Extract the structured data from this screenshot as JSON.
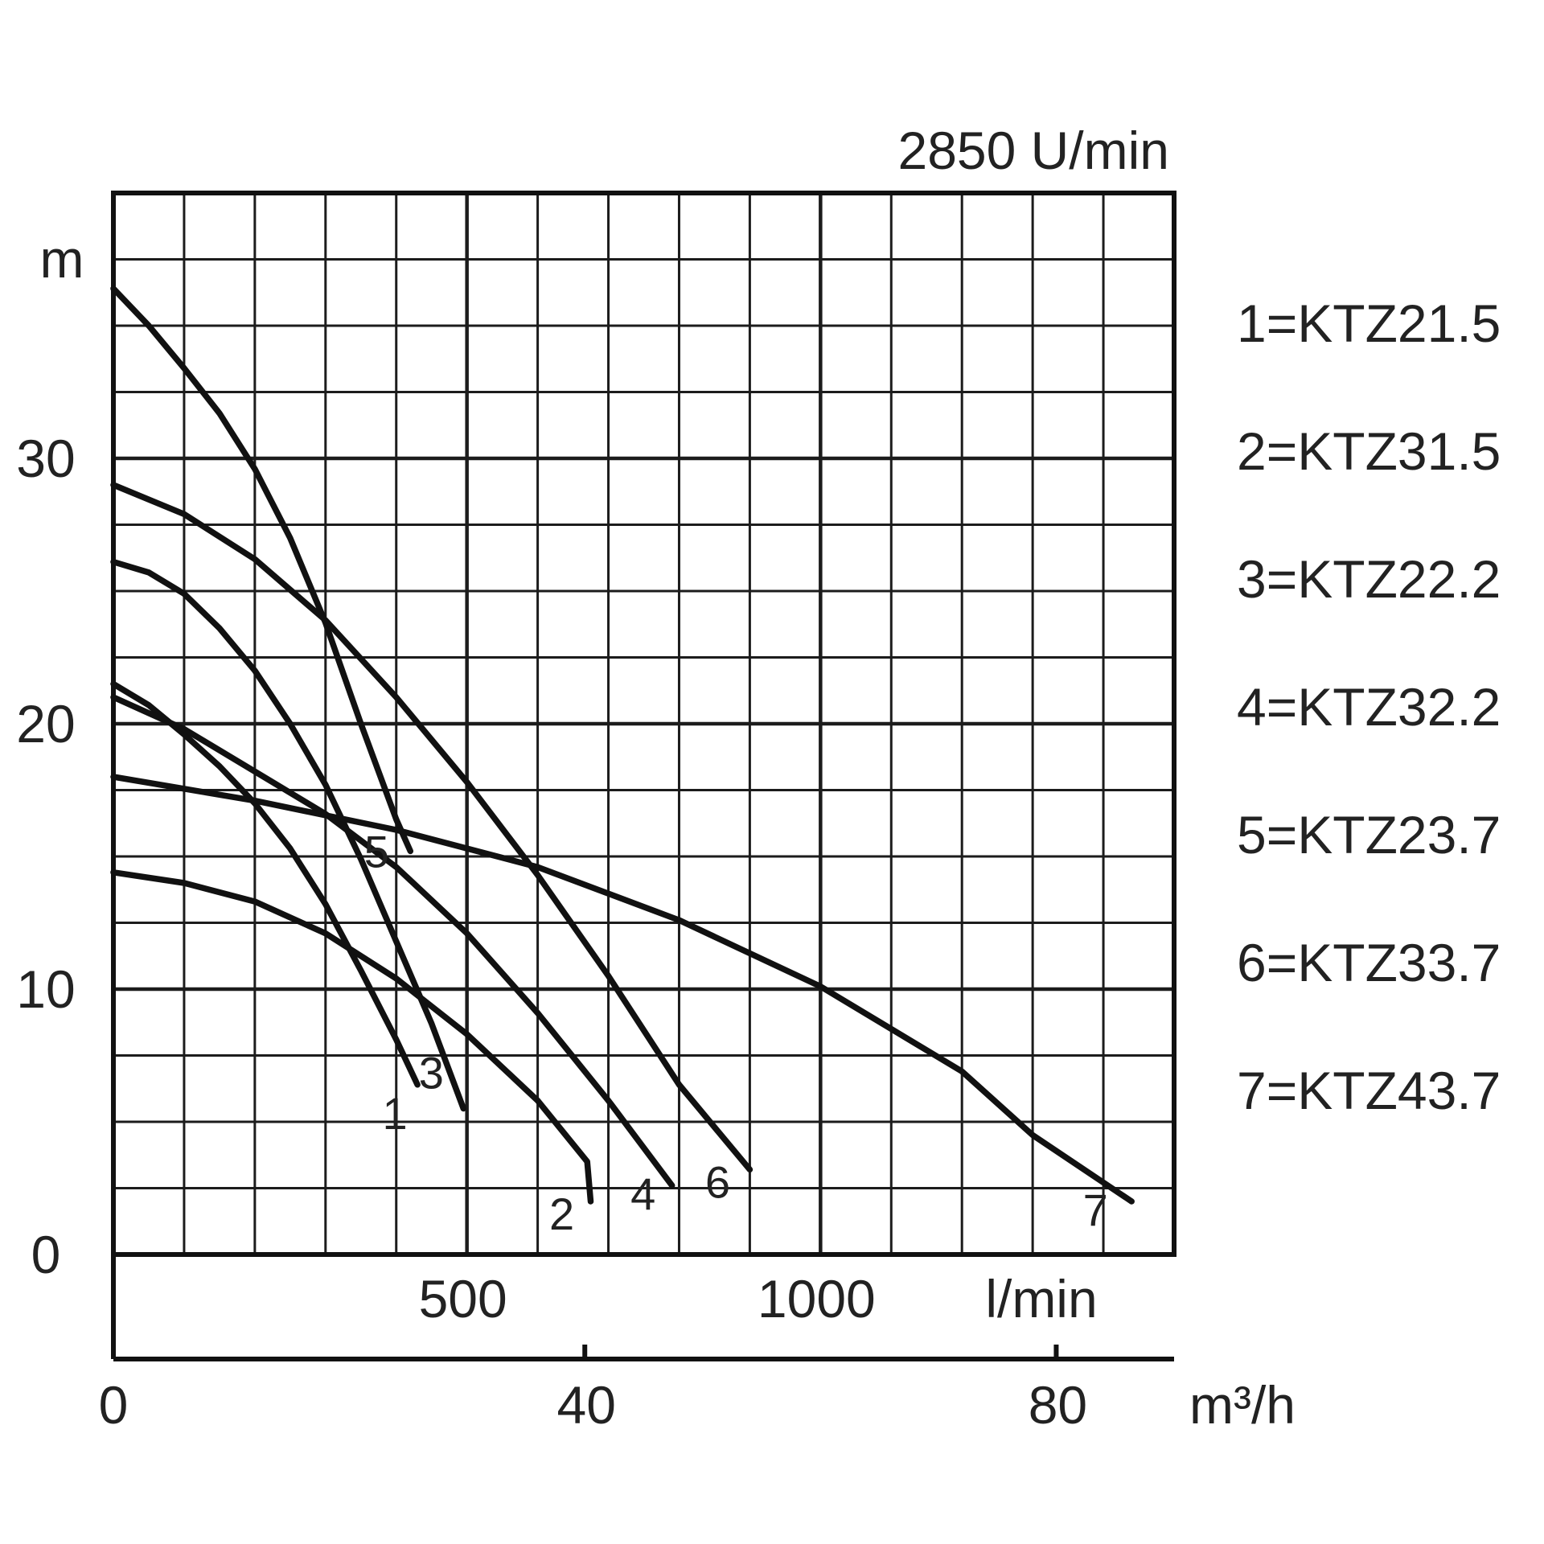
{
  "chart_data": {
    "type": "line",
    "title": "2850 U/min",
    "ylabel": "m",
    "xlabel": "l/min",
    "x2label": "m³/h",
    "xlim": [
      0,
      1500
    ],
    "ylim": [
      0,
      40
    ],
    "grid": true,
    "legend_position": "right",
    "y_ticks": [
      {
        "value": 0,
        "label": "0"
      },
      {
        "value": 10,
        "label": "10"
      },
      {
        "value": 20,
        "label": "20"
      },
      {
        "value": 30,
        "label": "30"
      }
    ],
    "x_ticks": [
      {
        "value": 500,
        "label": "500"
      },
      {
        "value": 1000,
        "label": "1000"
      }
    ],
    "x2_ticks": [
      {
        "value": 0,
        "label": "0"
      },
      {
        "value": 40,
        "label": "40"
      },
      {
        "value": 80,
        "label": "80"
      }
    ],
    "series": [
      {
        "id": "1",
        "name": "KTZ21.5",
        "legend": "1=KTZ21.5",
        "end_label": "1",
        "points": [
          [
            0,
            21.5
          ],
          [
            50,
            20.7
          ],
          [
            100,
            19.6
          ],
          [
            150,
            18.4
          ],
          [
            200,
            17.0
          ],
          [
            250,
            15.3
          ],
          [
            300,
            13.2
          ],
          [
            350,
            10.7
          ],
          [
            400,
            8.1
          ],
          [
            430,
            6.4
          ]
        ]
      },
      {
        "id": "2",
        "name": "KTZ31.5",
        "legend": "2=KTZ31.5",
        "end_label": "2",
        "points": [
          [
            0,
            14.4
          ],
          [
            100,
            14.0
          ],
          [
            200,
            13.3
          ],
          [
            300,
            12.1
          ],
          [
            400,
            10.4
          ],
          [
            500,
            8.3
          ],
          [
            600,
            5.8
          ],
          [
            670,
            3.5
          ],
          [
            675,
            2.0
          ]
        ]
      },
      {
        "id": "3",
        "name": "KTZ22.2",
        "legend": "3=KTZ22.2",
        "end_label": "3",
        "points": [
          [
            0,
            26.1
          ],
          [
            50,
            25.7
          ],
          [
            100,
            24.9
          ],
          [
            150,
            23.6
          ],
          [
            200,
            22.0
          ],
          [
            250,
            20.0
          ],
          [
            300,
            17.7
          ],
          [
            350,
            14.9
          ],
          [
            400,
            11.8
          ],
          [
            450,
            8.7
          ],
          [
            495,
            5.5
          ]
        ]
      },
      {
        "id": "4",
        "name": "KTZ32.2",
        "legend": "4=KTZ32.2",
        "end_label": "4",
        "points": [
          [
            0,
            21.0
          ],
          [
            100,
            19.8
          ],
          [
            200,
            18.2
          ],
          [
            300,
            16.6
          ],
          [
            400,
            14.6
          ],
          [
            500,
            12.1
          ],
          [
            600,
            9.1
          ],
          [
            700,
            5.8
          ],
          [
            790,
            2.6
          ]
        ]
      },
      {
        "id": "5",
        "name": "KTZ23.7",
        "legend": "5=KTZ23.7",
        "end_label": "5",
        "points": [
          [
            0,
            36.4
          ],
          [
            50,
            35.0
          ],
          [
            100,
            33.4
          ],
          [
            150,
            31.7
          ],
          [
            200,
            29.6
          ],
          [
            250,
            27.0
          ],
          [
            300,
            23.8
          ],
          [
            350,
            20.0
          ],
          [
            400,
            16.4
          ],
          [
            420,
            15.2
          ]
        ]
      },
      {
        "id": "6",
        "name": "KTZ33.7",
        "legend": "6=KTZ33.7",
        "end_label": "6",
        "points": [
          [
            0,
            29.0
          ],
          [
            100,
            27.9
          ],
          [
            200,
            26.2
          ],
          [
            300,
            23.9
          ],
          [
            400,
            21.0
          ],
          [
            500,
            17.8
          ],
          [
            600,
            14.3
          ],
          [
            700,
            10.5
          ],
          [
            800,
            6.4
          ],
          [
            900,
            3.2
          ]
        ]
      },
      {
        "id": "7",
        "name": "KTZ43.7",
        "legend": "7=KTZ43.7",
        "end_label": "7",
        "points": [
          [
            0,
            18.0
          ],
          [
            200,
            17.1
          ],
          [
            400,
            16.0
          ],
          [
            600,
            14.6
          ],
          [
            800,
            12.6
          ],
          [
            1000,
            10.1
          ],
          [
            1200,
            6.9
          ],
          [
            1300,
            4.5
          ],
          [
            1440,
            2.0
          ]
        ]
      }
    ]
  }
}
